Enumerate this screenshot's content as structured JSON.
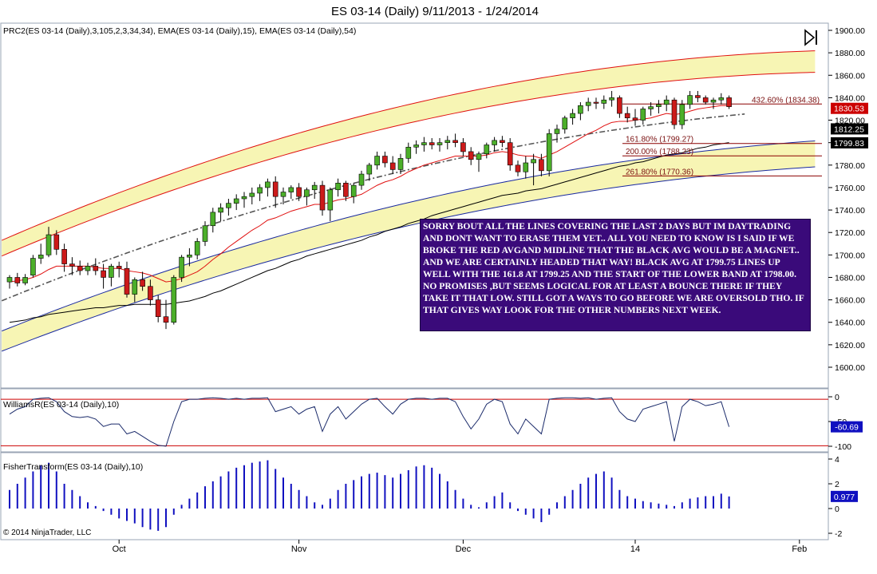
{
  "title": "ES 03-14 (Daily)  9/11/2013 - 1/24/2014",
  "copyright": "© 2014 NinjaTrader, LLC",
  "panels": {
    "price": {
      "label": "PRC2(ES 03-14 (Daily),3,105,2,3,34,34), EMA(ES 03-14 (Daily),15), EMA(ES 03-14 (Daily),54)",
      "ticks": [
        "1900.00",
        "1880.00",
        "1860.00",
        "1840.00",
        "1820.00",
        "1800.00",
        "1780.00",
        "1760.00",
        "1740.00",
        "1720.00",
        "1700.00",
        "1680.00",
        "1660.00",
        "1640.00",
        "1620.00",
        "1600.00"
      ],
      "price_tags": [
        {
          "text": "1830.53",
          "color": "#cc0000"
        },
        {
          "text": "1812.25",
          "color": "#000000"
        },
        {
          "text": "1799.83",
          "color": "#000000"
        }
      ]
    },
    "williams": {
      "label": "WilliamsR(ES 03-14 (Daily),10)",
      "ticks": [
        "0",
        "-50",
        "-100"
      ],
      "value_tag": "-60.69"
    },
    "fisher": {
      "label": "FisherTransform(ES 03-14 (Daily),10)",
      "ticks": [
        "4",
        "2",
        "0",
        "-2"
      ],
      "value_tag": "0.977"
    }
  },
  "x_axis": {
    "labels": [
      "Oct",
      "Nov",
      "Dec",
      "14",
      "Feb"
    ]
  },
  "fib_labels": [
    {
      "text": "432.60% (1834.38)",
      "price": 1834.38
    },
    {
      "text": "161.80% (1799.27)",
      "price": 1799.27
    },
    {
      "text": "200.00% (1788.23)",
      "price": 1788.23
    },
    {
      "text": "261.80% (1770.36)",
      "price": 1770.36
    }
  ],
  "note": "SORRY BOUT ALL THE LINES COVERING THE LAST 2 DAYS BUT IM DAYTRADING AND DONT WANT TO ERASE THEM YET.. ALL YOU NEED TO KNOW IS I SAID IF WE BROKE THE RED AVGAND MIDLINE THAT THE BLACK AVG WOULD BE A MAGNET.. AND WE ARE CERTAINLY HEADED THAT WAY! BLACK AVG AT 1799.75 LINES UP WELL WITH THE 161.8 AT 1799.25 AND THE START OF THE LOWER BAND AT 1798.00. NO PROMISES ,BUT SEEMS LOGICAL FOR AT LEAST A BOUNCE THERE IF THEY TAKE IT THAT LOW. STILL GOT A WAYS TO GO BEFORE WE ARE OVERSOLD THO. IF THAT GIVES WAY LOOK FOR THE OTHER NUMBERS NEXT WEEK.",
  "colors": {
    "up_candle": "#4caf2a",
    "down_candle": "#cc1a1a",
    "band_fill": "#f7f5b4",
    "band_outer": "#e01010",
    "band_inner": "#1a2aa0",
    "ema15": "#e01010",
    "ema54": "#000000",
    "fisher_bar": "#1010c0",
    "note_bg": "#3a0a7a"
  },
  "chart_data": {
    "type": "candlestick",
    "ylim": [
      1590,
      1905
    ],
    "candles": [
      [
        1676,
        1682,
        1670,
        1680
      ],
      [
        1680,
        1684,
        1672,
        1675
      ],
      [
        1675,
        1683,
        1673,
        1680
      ],
      [
        1682,
        1700,
        1680,
        1697
      ],
      [
        1697,
        1710,
        1692,
        1700
      ],
      [
        1700,
        1725,
        1698,
        1718
      ],
      [
        1718,
        1722,
        1700,
        1705
      ],
      [
        1705,
        1710,
        1685,
        1692
      ],
      [
        1692,
        1698,
        1682,
        1690
      ],
      [
        1690,
        1695,
        1682,
        1686
      ],
      [
        1686,
        1693,
        1682,
        1690
      ],
      [
        1690,
        1697,
        1682,
        1686
      ],
      [
        1686,
        1692,
        1670,
        1680
      ],
      [
        1680,
        1692,
        1672,
        1690
      ],
      [
        1690,
        1694,
        1680,
        1688
      ],
      [
        1688,
        1694,
        1662,
        1665
      ],
      [
        1665,
        1680,
        1658,
        1678
      ],
      [
        1678,
        1685,
        1668,
        1672
      ],
      [
        1672,
        1678,
        1655,
        1660
      ],
      [
        1660,
        1664,
        1640,
        1645
      ],
      [
        1645,
        1660,
        1634,
        1640
      ],
      [
        1640,
        1682,
        1638,
        1680
      ],
      [
        1680,
        1700,
        1676,
        1698
      ],
      [
        1698,
        1706,
        1690,
        1700
      ],
      [
        1700,
        1715,
        1696,
        1712
      ],
      [
        1712,
        1730,
        1708,
        1726
      ],
      [
        1726,
        1742,
        1720,
        1738
      ],
      [
        1738,
        1746,
        1730,
        1742
      ],
      [
        1742,
        1750,
        1735,
        1746
      ],
      [
        1746,
        1754,
        1740,
        1750
      ],
      [
        1750,
        1756,
        1742,
        1752
      ],
      [
        1752,
        1760,
        1745,
        1755
      ],
      [
        1755,
        1763,
        1748,
        1760
      ],
      [
        1760,
        1768,
        1752,
        1765
      ],
      [
        1765,
        1770,
        1742,
        1752
      ],
      [
        1752,
        1760,
        1745,
        1756
      ],
      [
        1756,
        1762,
        1750,
        1760
      ],
      [
        1760,
        1764,
        1748,
        1752
      ],
      [
        1752,
        1760,
        1744,
        1758
      ],
      [
        1758,
        1765,
        1750,
        1762
      ],
      [
        1762,
        1766,
        1735,
        1740
      ],
      [
        1740,
        1760,
        1730,
        1758
      ],
      [
        1758,
        1768,
        1752,
        1764
      ],
      [
        1764,
        1766,
        1748,
        1752
      ],
      [
        1752,
        1764,
        1746,
        1762
      ],
      [
        1762,
        1775,
        1758,
        1772
      ],
      [
        1772,
        1782,
        1766,
        1780
      ],
      [
        1780,
        1792,
        1776,
        1788
      ],
      [
        1788,
        1792,
        1778,
        1782
      ],
      [
        1782,
        1788,
        1772,
        1776
      ],
      [
        1776,
        1790,
        1772,
        1786
      ],
      [
        1786,
        1800,
        1782,
        1796
      ],
      [
        1796,
        1802,
        1790,
        1798
      ],
      [
        1798,
        1805,
        1792,
        1800
      ],
      [
        1800,
        1804,
        1794,
        1798
      ],
      [
        1798,
        1804,
        1792,
        1800
      ],
      [
        1800,
        1806,
        1794,
        1802
      ],
      [
        1802,
        1808,
        1796,
        1800
      ],
      [
        1800,
        1804,
        1788,
        1792
      ],
      [
        1792,
        1796,
        1780,
        1785
      ],
      [
        1785,
        1792,
        1774,
        1790
      ],
      [
        1790,
        1800,
        1786,
        1798
      ],
      [
        1798,
        1805,
        1792,
        1802
      ],
      [
        1802,
        1806,
        1796,
        1800
      ],
      [
        1800,
        1804,
        1775,
        1780
      ],
      [
        1780,
        1784,
        1770,
        1774
      ],
      [
        1774,
        1788,
        1768,
        1782
      ],
      [
        1782,
        1790,
        1762,
        1785
      ],
      [
        1785,
        1790,
        1770,
        1775
      ],
      [
        1775,
        1812,
        1770,
        1808
      ],
      [
        1808,
        1816,
        1800,
        1812
      ],
      [
        1812,
        1824,
        1808,
        1822
      ],
      [
        1822,
        1830,
        1816,
        1826
      ],
      [
        1826,
        1836,
        1820,
        1833
      ],
      [
        1833,
        1840,
        1828,
        1836
      ],
      [
        1836,
        1840,
        1830,
        1835
      ],
      [
        1835,
        1842,
        1830,
        1838
      ],
      [
        1838,
        1846,
        1832,
        1840
      ],
      [
        1840,
        1842,
        1822,
        1826
      ],
      [
        1826,
        1832,
        1818,
        1822
      ],
      [
        1822,
        1830,
        1815,
        1820
      ],
      [
        1820,
        1832,
        1816,
        1830
      ],
      [
        1830,
        1836,
        1824,
        1832
      ],
      [
        1832,
        1838,
        1826,
        1834
      ],
      [
        1834,
        1842,
        1828,
        1838
      ],
      [
        1838,
        1840,
        1812,
        1816
      ],
      [
        1816,
        1838,
        1812,
        1834
      ],
      [
        1834,
        1846,
        1830,
        1842
      ],
      [
        1842,
        1846,
        1836,
        1840
      ],
      [
        1840,
        1842,
        1834,
        1836
      ],
      [
        1836,
        1840,
        1830,
        1838
      ],
      [
        1838,
        1844,
        1834,
        1840
      ],
      [
        1840,
        1842,
        1830,
        1832
      ]
    ],
    "ema15": [
      1676,
      1677,
      1678,
      1680,
      1683,
      1687,
      1690,
      1690,
      1690,
      1690,
      1690,
      1689,
      1688,
      1688,
      1688,
      1686,
      1685,
      1684,
      1682,
      1679,
      1676,
      1677,
      1679,
      1682,
      1685,
      1690,
      1696,
      1701,
      1707,
      1712,
      1717,
      1722,
      1726,
      1731,
      1733,
      1736,
      1739,
      1741,
      1743,
      1745,
      1745,
      1747,
      1749,
      1750,
      1752,
      1754,
      1758,
      1762,
      1765,
      1767,
      1770,
      1774,
      1777,
      1780,
      1782,
      1784,
      1786,
      1788,
      1788,
      1788,
      1788,
      1789,
      1791,
      1792,
      1791,
      1789,
      1788,
      1788,
      1786,
      1789,
      1792,
      1796,
      1800,
      1804,
      1808,
      1811,
      1815,
      1818,
      1819,
      1819,
      1820,
      1821,
      1822,
      1824,
      1826,
      1825,
      1826,
      1828,
      1830,
      1831,
      1832,
      1833,
      1833
    ],
    "ema54": [
      1640,
      1641,
      1642,
      1644,
      1645,
      1647,
      1648,
      1649,
      1650,
      1651,
      1652,
      1653,
      1653,
      1654,
      1655,
      1655,
      1656,
      1656,
      1656,
      1656,
      1656,
      1657,
      1658,
      1659,
      1661,
      1663,
      1666,
      1668,
      1671,
      1674,
      1677,
      1680,
      1683,
      1686,
      1688,
      1691,
      1694,
      1696,
      1699,
      1701,
      1703,
      1705,
      1707,
      1709,
      1711,
      1713,
      1716,
      1718,
      1721,
      1723,
      1725,
      1728,
      1730,
      1732,
      1735,
      1737,
      1739,
      1741,
      1743,
      1745,
      1747,
      1749,
      1751,
      1753,
      1754,
      1755,
      1757,
      1758,
      1759,
      1761,
      1763,
      1765,
      1767,
      1769,
      1771,
      1773,
      1775,
      1777,
      1779,
      1780,
      1782,
      1783,
      1785,
      1787,
      1789,
      1790,
      1791,
      1793,
      1795,
      1796,
      1798,
      1799,
      1800
    ],
    "williams_r": [
      -35,
      -25,
      -20,
      -5,
      -3,
      -2,
      -10,
      -30,
      -40,
      -42,
      -40,
      -45,
      -60,
      -55,
      -55,
      -75,
      -70,
      -80,
      -90,
      -98,
      -100,
      -50,
      -10,
      -5,
      -5,
      -3,
      -2,
      -3,
      -5,
      -3,
      -5,
      -3,
      -3,
      -2,
      -30,
      -25,
      -20,
      -35,
      -25,
      -20,
      -70,
      -35,
      -20,
      -45,
      -30,
      -15,
      -5,
      -3,
      -20,
      -35,
      -15,
      -5,
      -3,
      -3,
      -5,
      -3,
      -3,
      -10,
      -40,
      -65,
      -45,
      -15,
      -5,
      -10,
      -55,
      -75,
      -45,
      -60,
      -75,
      -5,
      -3,
      -2,
      -2,
      -3,
      -2,
      -5,
      -3,
      -2,
      -30,
      -45,
      -50,
      -25,
      -20,
      -15,
      -10,
      -90,
      -20,
      -5,
      -10,
      -18,
      -15,
      -10,
      -60.69
    ],
    "fisher": [
      1.5,
      2,
      2.5,
      3,
      3.5,
      3.7,
      3,
      2,
      1.5,
      1,
      0.5,
      0.2,
      -0.2,
      -0.5,
      -0.8,
      -1,
      -1.2,
      -1.5,
      -1.7,
      -1.8,
      -1.5,
      -0.5,
      0.3,
      0.8,
      1.3,
      1.8,
      2.2,
      2.6,
      3,
      3.3,
      3.5,
      3.7,
      3.8,
      3.9,
      3.2,
      2.5,
      2,
      1.5,
      1,
      0.5,
      0.3,
      0.8,
      1.5,
      2,
      2.3,
      2.6,
      2.8,
      2.9,
      2.7,
      2.5,
      2.8,
      3.1,
      3.4,
      3.5,
      3.3,
      2.8,
      2.2,
      1.5,
      0.8,
      0.3,
      0.1,
      0.5,
      1,
      1.3,
      0.5,
      -0.2,
      -0.5,
      -0.8,
      -1.1,
      -0.5,
      0.5,
      1,
      1.5,
      2,
      2.5,
      2.8,
      3,
      2.5,
      1.5,
      1,
      0.8,
      0.6,
      0.5,
      0.4,
      0.3,
      0.2,
      0.5,
      0.8,
      0.9,
      1,
      1,
      1.2,
      0.977
    ],
    "fib_levels": [
      1834.38,
      1799.27,
      1788.23,
      1770.36
    ]
  }
}
